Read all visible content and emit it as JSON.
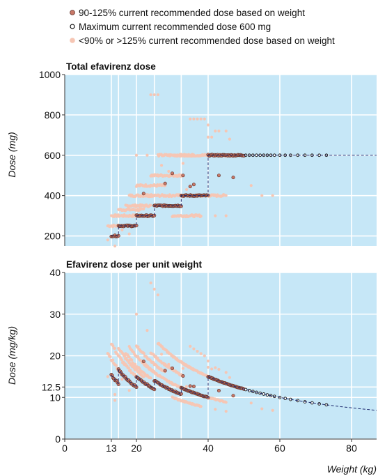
{
  "legend": {
    "items": [
      {
        "label": "90-125% current recommended dose based on weight",
        "marker": "filled",
        "color": "#c87868",
        "stroke": "#5a2a22"
      },
      {
        "label": "Maximum current recommended dose 600 mg",
        "marker": "open",
        "color": "#ffffff",
        "stroke": "#111111"
      },
      {
        "label": "<90% or >125% current recommended dose based on weight",
        "marker": "filled",
        "color": "#f6c6b4",
        "stroke": "#f6c6b4"
      }
    ]
  },
  "colors": {
    "plot_background": "#c6e7f7",
    "grid": "#ffffff",
    "in_range": "#c87868",
    "in_range_stroke": "#5a2a22",
    "out_range": "#f6c6b4",
    "max_dose_open": "#111111",
    "reference_line": "#1e2a6e"
  },
  "xaxis": {
    "label": "Weight (kg)",
    "ticks": [
      0,
      13,
      20,
      40,
      60,
      80
    ],
    "tick_labels": [
      "0",
      "13",
      "20",
      "40",
      "60",
      "80"
    ],
    "range": [
      0,
      87
    ]
  },
  "chart_data": [
    {
      "type": "scatter",
      "title": "Total efavirenz dose",
      "ylabel": "Dose (mg)",
      "ylim": [
        150,
        1000
      ],
      "yticks": [
        200,
        400,
        600,
        800,
        1000
      ],
      "ytick_labels": [
        "200",
        "400",
        "600",
        "800",
        "1000"
      ],
      "grid": true,
      "xgrid": [
        13,
        15,
        20,
        25,
        32.5,
        40,
        60,
        80
      ],
      "reference_steps": [
        [
          13,
          200
        ],
        [
          15,
          250
        ],
        [
          20,
          300
        ],
        [
          25,
          350
        ],
        [
          32.5,
          400
        ],
        [
          40,
          600
        ],
        [
          87,
          600
        ]
      ],
      "series": [
        {
          "name": "90-125% current recommended dose based on weight",
          "style": "in_range",
          "bands": [
            [
              13,
              15,
              200
            ],
            [
              15,
              20,
              250
            ],
            [
              20,
              25,
              300
            ],
            [
              25,
              32.5,
              350
            ],
            [
              32.5,
              40,
              400
            ],
            [
              40,
              50,
              600
            ]
          ],
          "points": [
            [
              30,
              510
            ],
            [
              33,
              500
            ],
            [
              28,
              460
            ],
            [
              35,
              445
            ],
            [
              36,
              455
            ],
            [
              43,
              500
            ],
            [
              47,
              490
            ],
            [
              22,
              410
            ]
          ]
        },
        {
          "name": "Maximum current recommended dose 600 mg",
          "style": "max_open",
          "points": [
            [
              50.5,
              600
            ],
            [
              51.5,
              600
            ],
            [
              52.5,
              600
            ],
            [
              53.5,
              600
            ],
            [
              54.5,
              600
            ],
            [
              55.5,
              600
            ],
            [
              56.5,
              600
            ],
            [
              57.5,
              600
            ],
            [
              58.5,
              600
            ],
            [
              60,
              600
            ],
            [
              61.5,
              600
            ],
            [
              63,
              600
            ],
            [
              65,
              600
            ],
            [
              67,
              600
            ],
            [
              69,
              600
            ],
            [
              71,
              600
            ],
            [
              73,
              600
            ]
          ]
        },
        {
          "name": "<90% or >125% current recommended dose based on weight",
          "style": "out_range",
          "bands": [
            [
              12,
              16,
              250
            ],
            [
              13,
              20,
              300
            ],
            [
              15,
              22,
              330
            ],
            [
              17,
              24,
              350
            ],
            [
              18,
              25,
              400
            ],
            [
              20,
              28,
              450
            ],
            [
              22,
              30,
              400
            ],
            [
              24,
              33,
              500
            ],
            [
              30,
              45,
              400
            ],
            [
              30,
              38,
              300
            ],
            [
              31,
              48,
              600
            ],
            [
              26,
              36,
              600
            ]
          ],
          "points": [
            [
              24,
              900
            ],
            [
              25,
              900
            ],
            [
              26,
              900
            ],
            [
              35,
              780
            ],
            [
              36,
              780
            ],
            [
              37,
              780
            ],
            [
              38,
              780
            ],
            [
              39,
              780
            ],
            [
              40,
              750
            ],
            [
              42,
              720
            ],
            [
              43,
              720
            ],
            [
              45,
              720
            ],
            [
              40,
              690
            ],
            [
              41,
              690
            ],
            [
              46,
              680
            ],
            [
              20,
              600
            ],
            [
              23,
              600
            ],
            [
              55,
              400
            ],
            [
              58,
              400
            ],
            [
              12,
              180
            ],
            [
              14,
              150
            ],
            [
              14,
              130
            ],
            [
              35,
              300
            ],
            [
              37,
              300
            ],
            [
              42,
              300
            ],
            [
              45,
              300
            ],
            [
              27,
              550
            ],
            [
              33,
              560
            ],
            [
              34,
              430
            ],
            [
              29,
              520
            ],
            [
              52,
              450
            ],
            [
              18,
              210
            ],
            [
              16,
              230
            ]
          ]
        }
      ]
    },
    {
      "type": "scatter",
      "title": "Efavirenz dose per unit weight",
      "ylabel": "Dose (mg/kg)",
      "ylim": [
        0,
        40
      ],
      "yticks": [
        0,
        10,
        12.5,
        20,
        30,
        40
      ],
      "ytick_labels": [
        "0",
        "10",
        "12.5",
        "20",
        "30",
        "40"
      ],
      "grid": true,
      "xgrid": [
        13,
        15,
        20,
        25,
        32.5,
        40,
        60,
        80
      ],
      "derived_from": "dose / weight",
      "reference_curve": "max current recommended dose divided by weight (600 mg above 40 kg)",
      "series_note": "Values are the total doses of the upper panel divided by body weight in kg."
    }
  ]
}
